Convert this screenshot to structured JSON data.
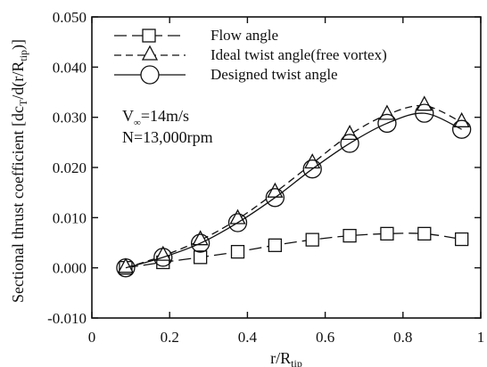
{
  "chart_data": {
    "type": "line",
    "xlabel": "r/R",
    "xlabel_sub": "tip",
    "ylabel_main": "Sectional thrust coefficient [dc",
    "ylabel_sub1": "T",
    "ylabel_mid": "/d(r/R",
    "ylabel_sub2": "tip",
    "ylabel_end": ")]",
    "xlim": [
      0,
      1
    ],
    "ylim": [
      -0.01,
      0.05
    ],
    "xticks": [
      0,
      0.2,
      0.4,
      0.6,
      0.8,
      1
    ],
    "xtick_labels": [
      "0",
      "0.2",
      "0.4",
      "0.6",
      "0.8",
      "1"
    ],
    "yticks": [
      -0.01,
      0.0,
      0.01,
      0.02,
      0.03,
      0.04,
      0.05
    ],
    "ytick_labels": [
      "-0.010",
      "0.000",
      "0.010",
      "0.020",
      "0.030",
      "0.040",
      "0.050"
    ],
    "grid": false,
    "legend_position": "top-center",
    "annotations": [
      {
        "main": "V",
        "sub": "∞",
        "rest": "=14m/s"
      },
      {
        "main": "N=13,000rpm",
        "sub": "",
        "rest": ""
      }
    ],
    "x": [
      0.087,
      0.183,
      0.279,
      0.375,
      0.471,
      0.567,
      0.663,
      0.759,
      0.855,
      0.951
    ],
    "series": [
      {
        "name": "Flow angle",
        "marker": "square",
        "line": "dash",
        "values": [
          0.0,
          0.0011,
          0.0021,
          0.0032,
          0.0045,
          0.0056,
          0.0064,
          0.0068,
          0.0068,
          0.0057
        ]
      },
      {
        "name": "Ideal twist angle(free vortex)",
        "marker": "triangle",
        "line": "shortdash",
        "values": [
          0.0,
          0.0024,
          0.0055,
          0.0097,
          0.015,
          0.0208,
          0.0265,
          0.0305,
          0.0323,
          0.029
        ]
      },
      {
        "name": "Designed twist angle",
        "marker": "circle",
        "line": "solid",
        "values": [
          0.0,
          0.0021,
          0.0049,
          0.009,
          0.014,
          0.0197,
          0.0248,
          0.0288,
          0.0308,
          0.0276
        ]
      }
    ]
  }
}
